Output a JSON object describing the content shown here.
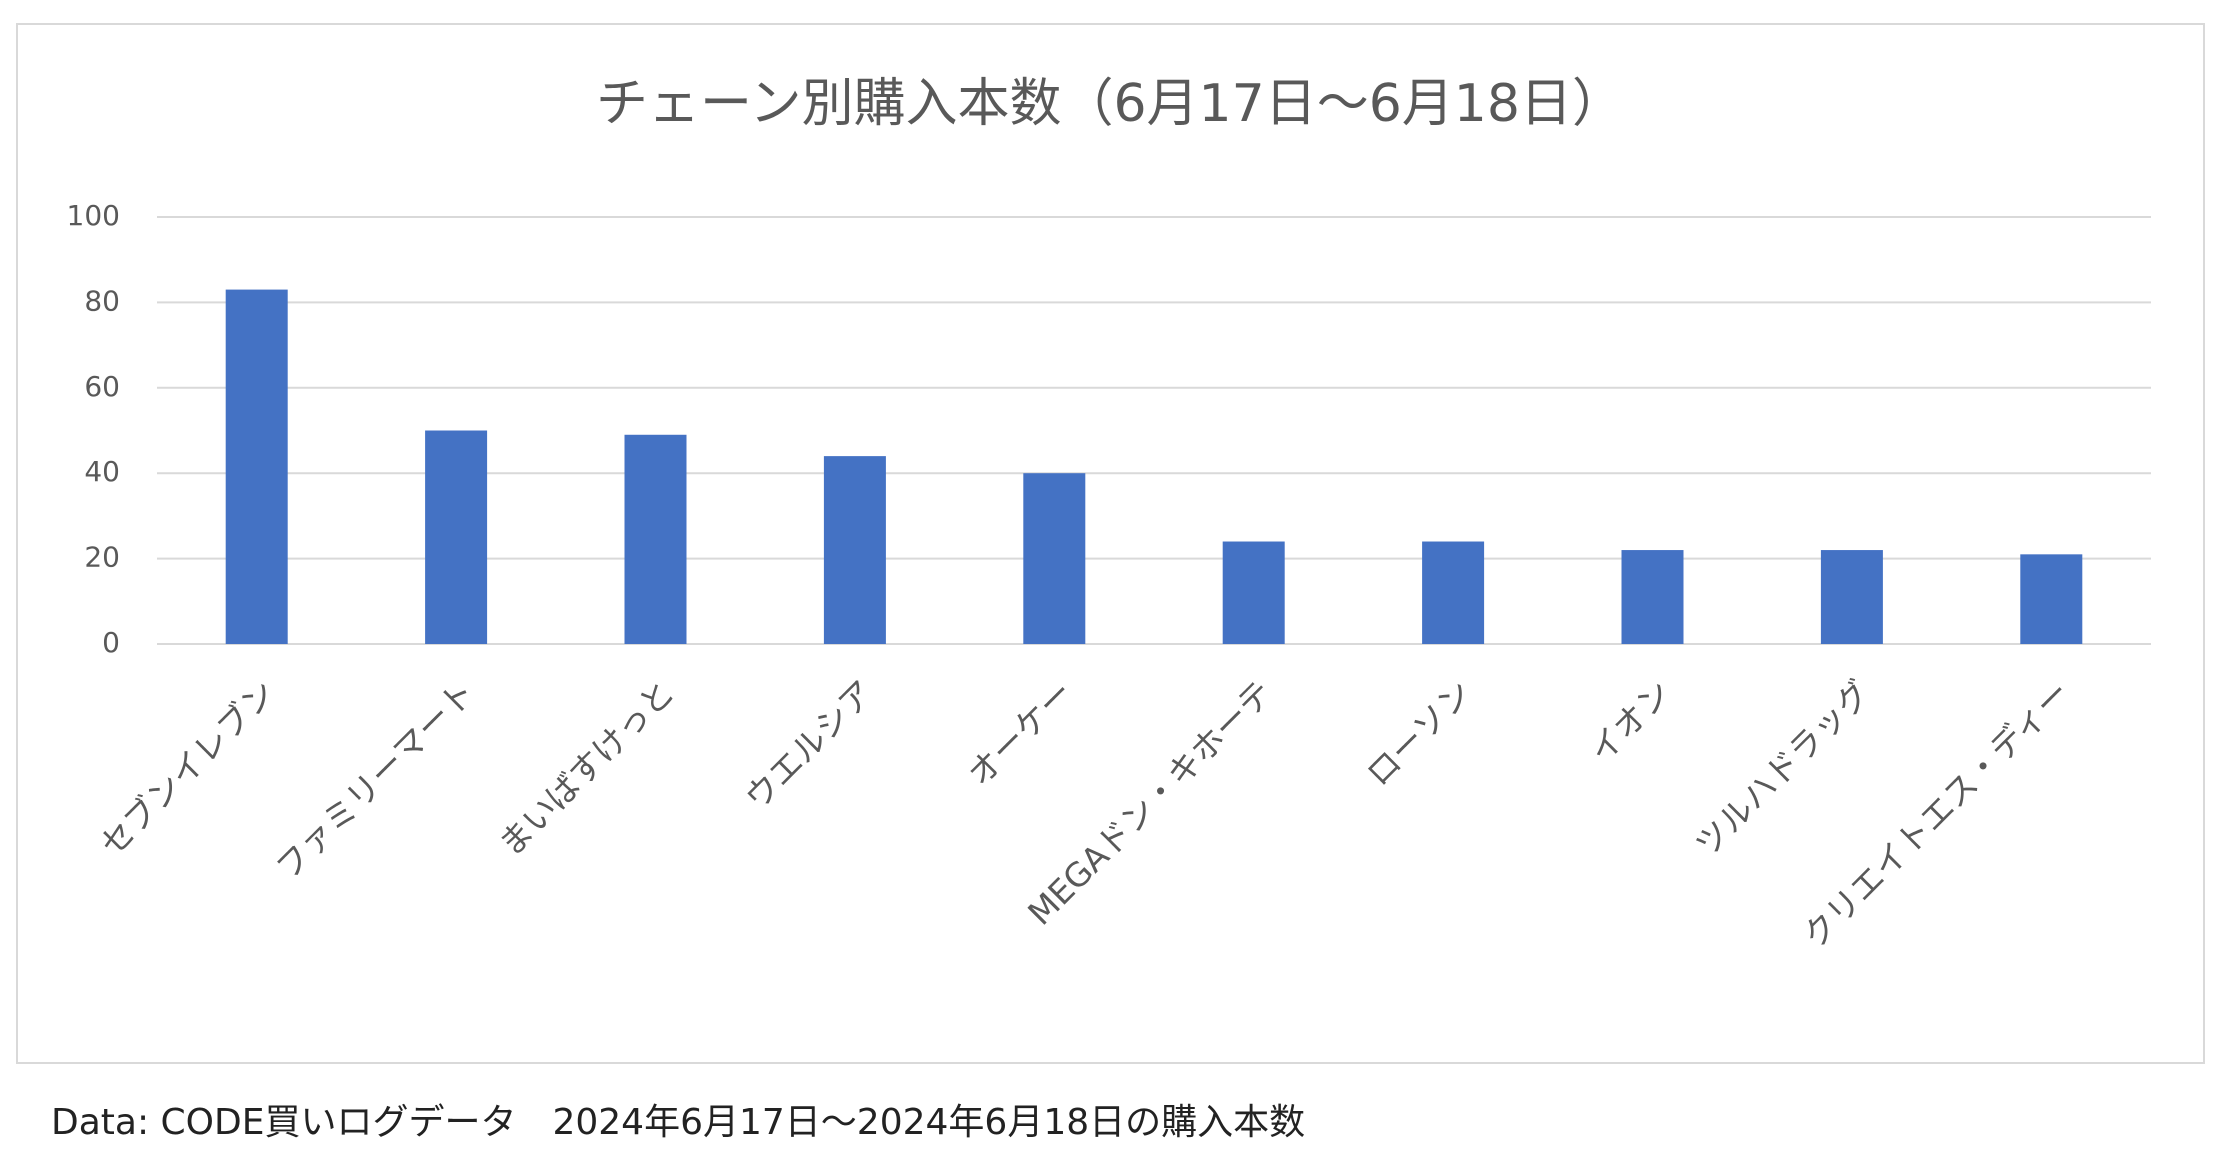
{
  "chart_data": {
    "type": "bar",
    "title": "チェーン別購入本数（6月17日～6月18日）",
    "categories": [
      "セブンイレブン",
      "ファミリーマート",
      "まいばすけっと",
      "ウエルシア",
      "オーケー",
      "MEGAドン・キホーテ",
      "ローソン",
      "イオン",
      "ツルハドラッグ",
      "クリエイトエス・ディー"
    ],
    "values": [
      83,
      50,
      49,
      44,
      40,
      24,
      24,
      22,
      22,
      21
    ],
    "color": "#4472c4",
    "ylim": [
      0,
      100
    ],
    "yticks": [
      0,
      20,
      40,
      60,
      80,
      100
    ],
    "grid": true,
    "note": "Data: CODE買いログデータ　2024年6月17日～2024年6月18日の購入本数"
  }
}
